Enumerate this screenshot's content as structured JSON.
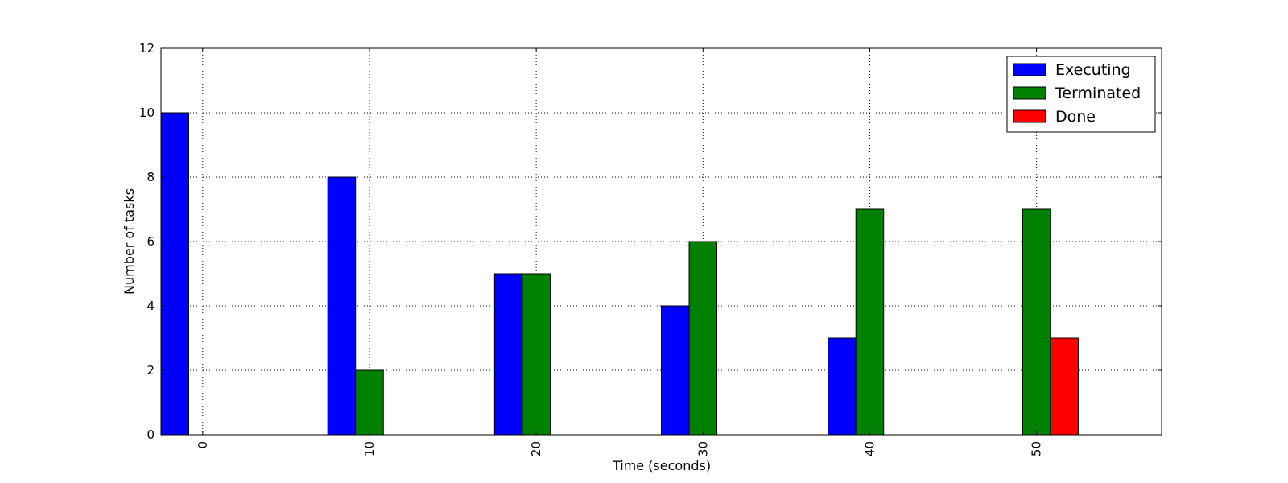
{
  "chart_data": {
    "type": "bar",
    "categories": [
      "0",
      "10",
      "20",
      "30",
      "40",
      "50"
    ],
    "series": [
      {
        "name": "Executing",
        "color": "#0000ff",
        "values": [
          10,
          8,
          5,
          4,
          3,
          0
        ]
      },
      {
        "name": "Terminated",
        "color": "#008000",
        "values": [
          0,
          2,
          5,
          6,
          7,
          7
        ]
      },
      {
        "name": "Done",
        "color": "#ff0000",
        "values": [
          0,
          0,
          0,
          0,
          0,
          3
        ]
      }
    ],
    "title": "",
    "xlabel": "Time (seconds)",
    "ylabel": "Number of tasks",
    "ylim": [
      0,
      12
    ],
    "yticks": [
      0,
      2,
      4,
      6,
      8,
      10,
      12
    ],
    "grid": true,
    "legend_position": "top-right"
  }
}
